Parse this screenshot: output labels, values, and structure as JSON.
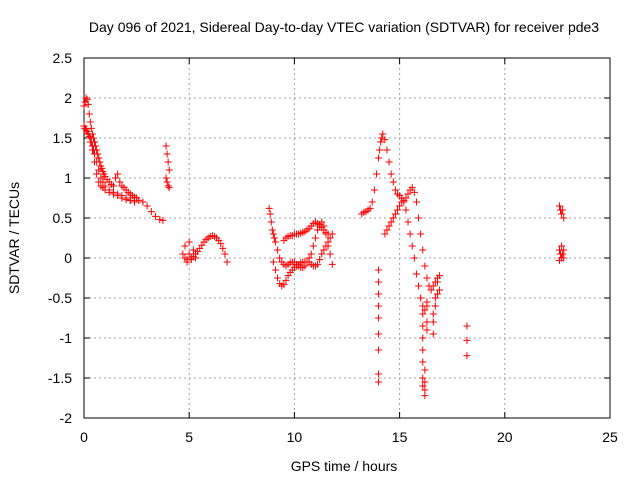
{
  "chart_data": {
    "type": "scatter",
    "title": "Day 096 of 2021, Sidereal Day-to-day VTEC variation (SDTVAR) for receiver pde3",
    "xlabel": "GPS time / hours",
    "ylabel": "SDTVAR / TECUs",
    "xlim": [
      0,
      25
    ],
    "ylim": [
      -2,
      2.5
    ],
    "xticks": [
      0,
      5,
      10,
      15,
      20,
      25
    ],
    "yticks": [
      -2,
      -1.5,
      -1,
      -0.5,
      0,
      0.5,
      1,
      1.5,
      2,
      2.5
    ],
    "xtick_labels": [
      "0",
      "5",
      "10",
      "15",
      "20",
      "25"
    ],
    "ytick_labels": [
      "-2",
      "-1.5",
      "-1",
      "-0.5",
      "0",
      "0.5",
      "1",
      "1.5",
      "2",
      "2.5"
    ],
    "grid": true,
    "marker": "+",
    "color": "#ff0000",
    "series": [
      {
        "name": "SDTVAR",
        "x": [
          0.0,
          0.05,
          0.1,
          0.15,
          0.2,
          0.25,
          0.3,
          0.35,
          0.4,
          0.45,
          0.5,
          0.55,
          0.6,
          0.65,
          0.7,
          0.75,
          0.8,
          0.85,
          0.9,
          0.95,
          1.0,
          1.1,
          1.2,
          1.3,
          1.4,
          1.5,
          1.6,
          1.7,
          1.8,
          1.9,
          2.0,
          2.1,
          2.2,
          2.3,
          2.4,
          2.5,
          2.6,
          2.8,
          3.0,
          3.2,
          3.4,
          3.6,
          3.75,
          0.1,
          0.2,
          0.3,
          0.4,
          0.5,
          0.6,
          0.7,
          0.8,
          0.9,
          1.0,
          1.2,
          1.4,
          1.6,
          1.8,
          2.0,
          2.2,
          2.4,
          0.0,
          0.05,
          0.1,
          0.15,
          0.2,
          0.25,
          0.3,
          0.35,
          0.4,
          0.45,
          0.5,
          0.6,
          0.7,
          0.8,
          0.9,
          1.0,
          1.2,
          1.4,
          1.6,
          1.8,
          2.0,
          2.2,
          3.9,
          3.95,
          4.0,
          4.05,
          3.9,
          3.95,
          4.0,
          4.05,
          4.7,
          4.8,
          4.9,
          5.0,
          5.1,
          5.2,
          5.3,
          5.4,
          5.5,
          5.6,
          5.7,
          5.8,
          5.9,
          6.0,
          6.1,
          6.2,
          6.3,
          6.4,
          6.5,
          6.6,
          6.7,
          6.8,
          4.8,
          5.0,
          5.2,
          4.9,
          5.1,
          5.3,
          8.8,
          8.85,
          8.9,
          8.95,
          9.0,
          9.05,
          9.1,
          9.2,
          9.3,
          9.4,
          9.5,
          9.6,
          9.7,
          9.8,
          9.9,
          10.0,
          10.1,
          10.2,
          10.3,
          10.4,
          10.5,
          10.6,
          10.7,
          10.8,
          10.9,
          11.0,
          11.1,
          11.2,
          11.3,
          11.4,
          11.5,
          11.6,
          11.7,
          11.8,
          9.5,
          9.6,
          9.7,
          9.8,
          9.9,
          10.0,
          10.1,
          10.2,
          10.3,
          10.4,
          10.5,
          10.6,
          10.7,
          10.8,
          10.9,
          11.0,
          11.1,
          11.2,
          11.3,
          11.4,
          11.5,
          11.6,
          9.0,
          9.1,
          9.2,
          9.3,
          9.4,
          9.5,
          9.6,
          9.7,
          9.8,
          9.9,
          10.0,
          10.1,
          10.2,
          10.3,
          10.4,
          10.5,
          10.6,
          10.7,
          10.8,
          10.9,
          11.0,
          11.1,
          11.2,
          11.3,
          11.4,
          11.5,
          11.6,
          11.7,
          11.8,
          13.2,
          13.3,
          13.4,
          13.5,
          13.6,
          13.7,
          13.8,
          13.9,
          14.0,
          14.05,
          14.1,
          14.15,
          14.2,
          14.3,
          14.4,
          14.5,
          14.6,
          14.7,
          14.8,
          14.9,
          15.0,
          15.1,
          15.2,
          15.3,
          15.4,
          15.5,
          15.6,
          15.7,
          15.8,
          15.9,
          16.0,
          16.1,
          16.2,
          16.3,
          14.3,
          14.4,
          14.5,
          14.6,
          14.7,
          14.8,
          14.9,
          15.0,
          15.1,
          15.2,
          15.3,
          15.4,
          15.5,
          15.6,
          15.7,
          15.8,
          15.9,
          16.0,
          16.1,
          16.2,
          16.3,
          16.4,
          16.5,
          16.6,
          16.7,
          16.8,
          16.9,
          14.0,
          14.0,
          14.0,
          14.0,
          14.0,
          14.0,
          14.0,
          14.0,
          14.0,
          16.1,
          16.1,
          16.1,
          16.1,
          16.1,
          16.1,
          16.1,
          16.2,
          16.2,
          16.2,
          16.2,
          16.3,
          16.3,
          16.3,
          16.6,
          16.6,
          16.6,
          16.7,
          16.7,
          16.8,
          16.8,
          16.9,
          18.2,
          18.2,
          18.2,
          22.6,
          22.65,
          22.7,
          22.75,
          22.8,
          22.6,
          22.65,
          22.7,
          22.75,
          22.8,
          22.6,
          22.7,
          22.8
        ],
        "y": [
          1.9,
          1.95,
          2.0,
          1.98,
          1.92,
          1.8,
          1.7,
          1.62,
          1.55,
          1.5,
          1.45,
          1.4,
          1.35,
          1.3,
          1.25,
          1.2,
          1.15,
          1.12,
          1.08,
          1.05,
          1.02,
          0.98,
          0.95,
          0.92,
          0.9,
          1.0,
          1.05,
          0.95,
          0.9,
          0.88,
          0.85,
          0.82,
          0.8,
          0.78,
          0.76,
          0.75,
          0.72,
          0.7,
          0.65,
          0.58,
          0.52,
          0.48,
          0.47,
          1.6,
          1.55,
          1.45,
          1.35,
          1.2,
          1.05,
          0.95,
          0.9,
          0.88,
          0.85,
          0.82,
          0.8,
          0.78,
          0.75,
          0.73,
          0.72,
          0.7,
          1.65,
          1.62,
          1.6,
          1.58,
          1.55,
          1.52,
          1.5,
          1.45,
          1.4,
          1.35,
          1.3,
          1.2,
          1.1,
          1.0,
          0.95,
          0.9,
          0.85,
          0.82,
          0.8,
          0.78,
          0.75,
          0.72,
          1.4,
          1.3,
          1.2,
          1.1,
          1.0,
          0.95,
          0.9,
          0.88,
          0.05,
          0.0,
          -0.02,
          0.05,
          0.0,
          0.02,
          0.05,
          0.08,
          0.12,
          0.16,
          0.2,
          0.23,
          0.25,
          0.27,
          0.28,
          0.27,
          0.25,
          0.22,
          0.18,
          0.12,
          0.05,
          -0.05,
          0.15,
          0.2,
          0.1,
          -0.05,
          -0.02,
          0.0,
          0.62,
          0.55,
          0.45,
          0.35,
          0.3,
          0.25,
          0.2,
          0.1,
          0.0,
          -0.05,
          -0.08,
          -0.1,
          -0.08,
          -0.06,
          -0.05,
          -0.05,
          -0.08,
          -0.1,
          -0.12,
          -0.12,
          -0.1,
          -0.05,
          0.0,
          0.05,
          0.15,
          0.25,
          0.35,
          0.42,
          0.45,
          0.4,
          0.3,
          0.15,
          0.05,
          -0.08,
          0.22,
          0.25,
          0.27,
          0.28,
          0.28,
          0.3,
          0.3,
          0.3,
          0.31,
          0.32,
          0.33,
          0.35,
          0.37,
          0.4,
          0.43,
          0.45,
          0.43,
          0.4,
          0.38,
          0.35,
          0.32,
          0.3,
          -0.05,
          -0.15,
          -0.25,
          -0.32,
          -0.35,
          -0.33,
          -0.28,
          -0.22,
          -0.18,
          -0.15,
          -0.12,
          -0.1,
          -0.08,
          -0.06,
          -0.05,
          -0.05,
          -0.05,
          -0.05,
          -0.08,
          -0.1,
          -0.1,
          -0.08,
          -0.02,
          0.05,
          0.1,
          0.15,
          0.2,
          0.25,
          0.3,
          0.55,
          0.57,
          0.58,
          0.6,
          0.62,
          0.7,
          0.85,
          1.05,
          1.25,
          1.35,
          1.45,
          1.5,
          1.55,
          1.48,
          1.35,
          1.2,
          1.05,
          0.95,
          0.85,
          0.8,
          0.78,
          0.75,
          0.7,
          0.6,
          0.45,
          0.3,
          0.15,
          0.0,
          -0.2,
          -0.35,
          -0.5,
          -0.6,
          -0.65,
          -0.55,
          0.3,
          0.35,
          0.4,
          0.45,
          0.5,
          0.55,
          0.6,
          0.65,
          0.7,
          0.72,
          0.75,
          0.8,
          0.85,
          0.88,
          0.82,
          0.7,
          0.5,
          0.3,
          0.1,
          -0.1,
          -0.25,
          -0.35,
          -0.4,
          -0.35,
          -0.3,
          -0.25,
          -0.22,
          -0.15,
          -0.3,
          -0.45,
          -0.6,
          -0.75,
          -0.95,
          -1.15,
          -1.45,
          -1.55,
          -0.7,
          -0.85,
          -1.0,
          -1.15,
          -1.3,
          -1.5,
          -1.6,
          -1.4,
          -1.55,
          -1.65,
          -1.72,
          -0.6,
          -0.8,
          -0.9,
          -0.7,
          -0.8,
          -0.95,
          -0.5,
          -0.6,
          -0.3,
          -0.45,
          -0.4,
          -0.85,
          -1.03,
          -1.22,
          0.65,
          0.6,
          0.55,
          0.6,
          0.5,
          0.1,
          0.05,
          0.0,
          0.05,
          0.1,
          -0.03,
          0.15,
          0.0
        ]
      }
    ]
  }
}
